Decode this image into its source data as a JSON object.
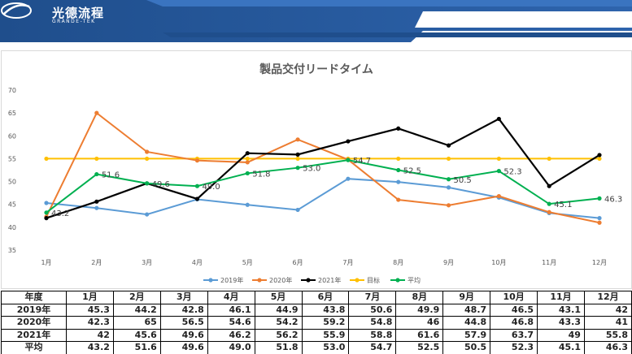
{
  "brand": {
    "name_cn": "光德流程",
    "name_en": "GRANDE-TEK"
  },
  "colors": {
    "banner_dark": "#1f4e8c",
    "banner_light": "#3a74c0",
    "y2019": "#5b9bd5",
    "y2020": "#ed7d31",
    "y2021": "#000000",
    "target": "#ffc000",
    "avg": "#00b050"
  },
  "chart_data": {
    "type": "line",
    "title": "製品交付リードタイム",
    "categories": [
      "1月",
      "2月",
      "3月",
      "4月",
      "5月",
      "6月",
      "7月",
      "8月",
      "9月",
      "10月",
      "11月",
      "12月"
    ],
    "ylim": [
      35,
      70
    ],
    "yticks": [
      35,
      40,
      45,
      50,
      55,
      60,
      65,
      70
    ],
    "grid": false,
    "legend_position": "bottom",
    "series": [
      {
        "name": "2019年",
        "key": "y2019",
        "values": [
          45.3,
          44.2,
          42.8,
          46.1,
          44.9,
          43.8,
          50.6,
          49.9,
          48.7,
          46.5,
          43.1,
          42
        ]
      },
      {
        "name": "2020年",
        "key": "y2020",
        "values": [
          42.3,
          65,
          56.5,
          54.6,
          54.2,
          59.2,
          54.8,
          46,
          44.8,
          46.8,
          43.3,
          41
        ]
      },
      {
        "name": "2021年",
        "key": "y2021",
        "values": [
          42,
          45.6,
          49.6,
          46.2,
          56.2,
          55.9,
          58.8,
          61.6,
          57.9,
          63.7,
          49,
          55.8
        ]
      },
      {
        "name": "目标",
        "key": "target",
        "values": [
          55,
          55,
          55,
          55,
          55,
          55,
          55,
          55,
          55,
          55,
          55,
          55
        ]
      },
      {
        "name": "平均",
        "key": "avg",
        "values": [
          43.2,
          51.6,
          49.6,
          49.0,
          51.8,
          53.0,
          54.7,
          52.5,
          50.5,
          52.3,
          45.1,
          46.3
        ],
        "labels": [
          "43.2",
          "51.6",
          "49.6",
          "49.0",
          "51.8",
          "53.0",
          "54.7",
          "52.5",
          "50.5",
          "52.3",
          "45.1",
          "46.3"
        ]
      }
    ]
  },
  "table": {
    "headers": [
      "年度",
      "1月",
      "2月",
      "3月",
      "4月",
      "5月",
      "6月",
      "7月",
      "8月",
      "9月",
      "10月",
      "11月",
      "12月"
    ],
    "rows": [
      [
        "2019年",
        "45.3",
        "44.2",
        "42.8",
        "46.1",
        "44.9",
        "43.8",
        "50.6",
        "49.9",
        "48.7",
        "46.5",
        "43.1",
        "42"
      ],
      [
        "2020年",
        "42.3",
        "65",
        "56.5",
        "54.6",
        "54.2",
        "59.2",
        "54.8",
        "46",
        "44.8",
        "46.8",
        "43.3",
        "41"
      ],
      [
        "2021年",
        "42",
        "45.6",
        "49.6",
        "46.2",
        "56.2",
        "55.9",
        "58.8",
        "61.6",
        "57.9",
        "63.7",
        "49",
        "55.8"
      ],
      [
        "平均",
        "43.2",
        "51.6",
        "49.6",
        "49.0",
        "51.8",
        "53.0",
        "54.7",
        "52.5",
        "50.5",
        "52.3",
        "45.1",
        "46.3"
      ]
    ]
  }
}
